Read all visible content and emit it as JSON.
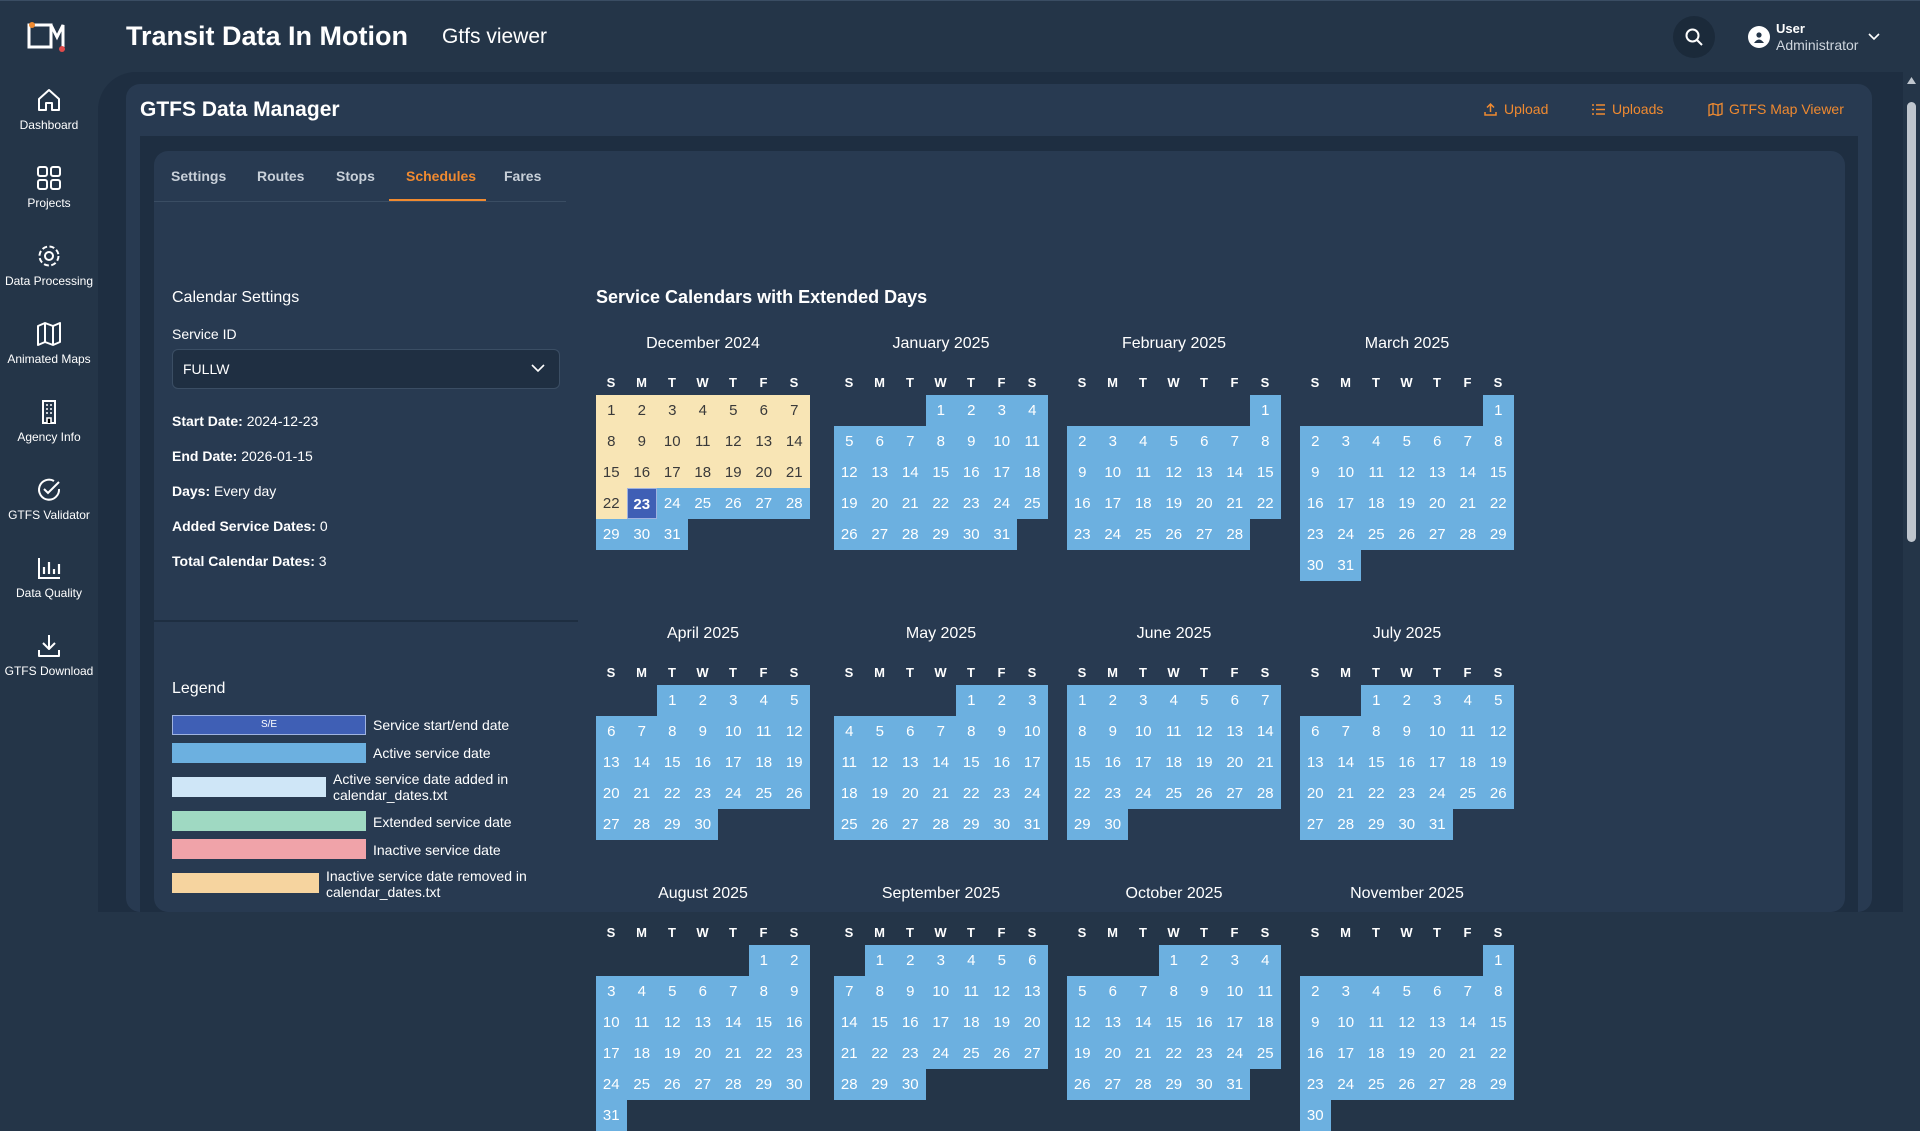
{
  "header": {
    "title": "Transit Data In Motion",
    "subtitle": "Gtfs viewer",
    "user_name": "User",
    "user_role": "Administrator"
  },
  "sidebar": {
    "items": [
      {
        "label": "Dashboard",
        "icon": "home-icon"
      },
      {
        "label": "Projects",
        "icon": "grid-icon"
      },
      {
        "label": "Data Processing",
        "icon": "gear-icon"
      },
      {
        "label": "Animated Maps",
        "icon": "map-icon"
      },
      {
        "label": "Agency Info",
        "icon": "building-icon"
      },
      {
        "label": "GTFS Validator",
        "icon": "check-circle-icon"
      },
      {
        "label": "Data Quality",
        "icon": "bar-chart-icon"
      },
      {
        "label": "GTFS Download",
        "icon": "download-icon"
      }
    ]
  },
  "page": {
    "title": "GTFS Data Manager",
    "actions": {
      "upload": "Upload",
      "uploads": "Uploads",
      "map_viewer": "GTFS Map Viewer"
    }
  },
  "tabs": [
    {
      "label": "Settings",
      "active": false
    },
    {
      "label": "Routes",
      "active": false
    },
    {
      "label": "Stops",
      "active": false
    },
    {
      "label": "Schedules",
      "active": true
    },
    {
      "label": "Fares",
      "active": false
    }
  ],
  "calendar_settings": {
    "title": "Calendar Settings",
    "service_id_label": "Service ID",
    "service_id_value": "FULLW",
    "start_date_label": "Start Date:",
    "start_date": "2024-12-23",
    "end_date_label": "End Date:",
    "end_date": "2026-01-15",
    "days_label": "Days:",
    "days": "Every day",
    "added_label": "Added Service Dates:",
    "added": "0",
    "total_label": "Total Calendar Dates:",
    "total": "3"
  },
  "legend": {
    "title": "Legend",
    "items": [
      {
        "swatch_text": "S/E",
        "text": "Service start/end date",
        "color": "#3f5fb5"
      },
      {
        "swatch_text": "",
        "text": "Active service date",
        "color": "#6cb0e0"
      },
      {
        "swatch_text": "",
        "text": "Active service date added in calendar_dates.txt",
        "color": "#cfe6f7"
      },
      {
        "swatch_text": "",
        "text": "Extended service date",
        "color": "#9fd9c2"
      },
      {
        "swatch_text": "",
        "text": "Inactive service date",
        "color": "#f0a3a9"
      },
      {
        "swatch_text": "",
        "text": "Inactive service date removed in calendar_dates.txt",
        "color": "#f6d49f"
      }
    ]
  },
  "calendars": {
    "title": "Service Calendars with Extended Days",
    "weekday_labels": [
      "S",
      "M",
      "T",
      "W",
      "T",
      "F",
      "S"
    ],
    "months": [
      {
        "name": "December 2024",
        "first_weekday": 0,
        "days": 31,
        "inactive_until": 22,
        "start_day": 23
      },
      {
        "name": "January 2025",
        "first_weekday": 3,
        "days": 31
      },
      {
        "name": "February 2025",
        "first_weekday": 6,
        "days": 28
      },
      {
        "name": "March 2025",
        "first_weekday": 6,
        "days": 31
      },
      {
        "name": "April 2025",
        "first_weekday": 2,
        "days": 30
      },
      {
        "name": "May 2025",
        "first_weekday": 4,
        "days": 31
      },
      {
        "name": "June 2025",
        "first_weekday": 0,
        "days": 30
      },
      {
        "name": "July 2025",
        "first_weekday": 2,
        "days": 31
      },
      {
        "name": "August 2025",
        "first_weekday": 5,
        "days": 31
      },
      {
        "name": "September 2025",
        "first_weekday": 1,
        "days": 30
      },
      {
        "name": "October 2025",
        "first_weekday": 3,
        "days": 31
      },
      {
        "name": "November 2025",
        "first_weekday": 6,
        "days": 30
      }
    ]
  },
  "colors": {
    "accent": "#f08a30",
    "active": "#6cb0e0",
    "inactive": "#f8e5b5",
    "start_end": "#3f5fb5"
  }
}
